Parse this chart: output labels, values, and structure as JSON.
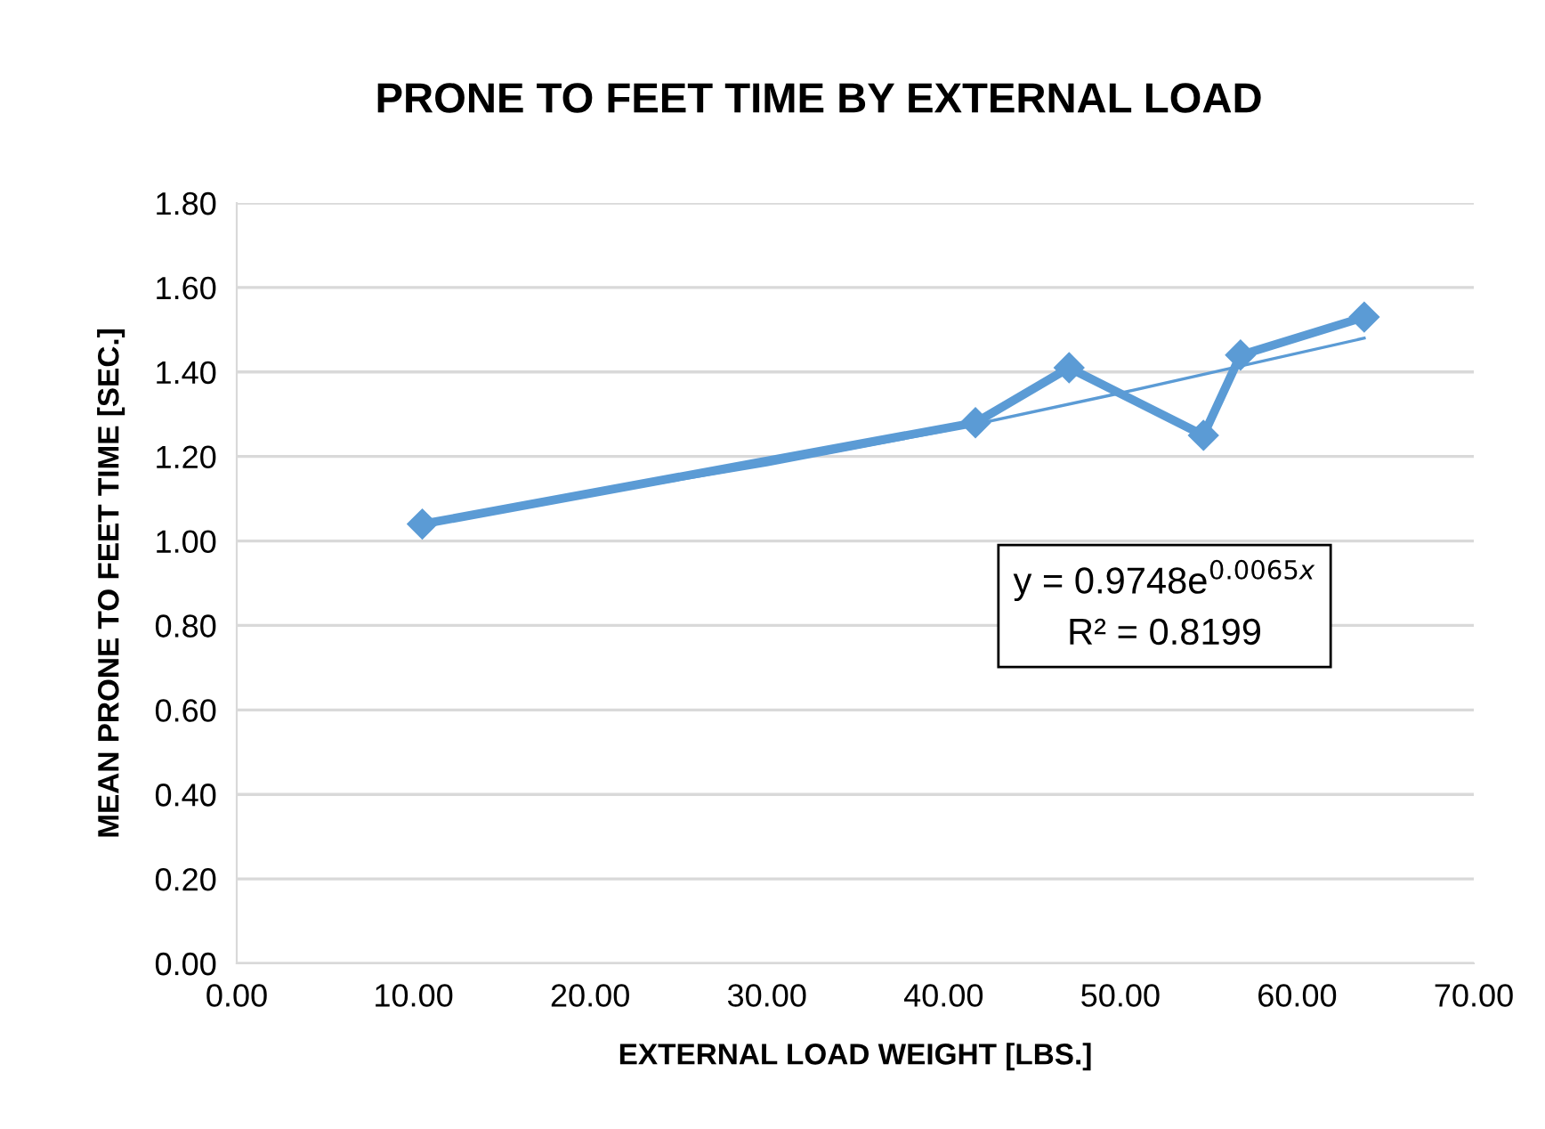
{
  "chart_data": {
    "type": "line",
    "title": "PRONE TO FEET TIME BY EXTERNAL LOAD",
    "xlabel": "EXTERNAL LOAD WEIGHT [LBS.]",
    "ylabel": "MEAN PRONE TO FEET TIME [SEC.]",
    "series": [
      {
        "color": "#5b9bd5",
        "marker": "diamond",
        "x": [
          10.5,
          41.8,
          47.1,
          54.7,
          56.8,
          63.8
        ],
        "values": [
          1.04,
          1.28,
          1.41,
          1.25,
          1.44,
          1.53
        ]
      },
      {
        "color": "#5b9bd5",
        "marker": "none",
        "x": [
          10.5,
          20,
          30,
          40,
          50,
          63.8
        ],
        "values": [
          1.04,
          1.11,
          1.18,
          1.26,
          1.35,
          1.48
        ]
      }
    ],
    "annotations": [
      "y = 0.9748e$^{0.0065x}$\nR² = 0.8199"
    ],
    "xlim": [
      0,
      70
    ],
    "xticks": [
      {
        "value": 0,
        "label": "0.00"
      },
      {
        "value": 10,
        "label": "10.00"
      },
      {
        "value": 20,
        "label": "20.00"
      },
      {
        "value": 30,
        "label": "30.00"
      },
      {
        "value": 40,
        "label": "40.00"
      },
      {
        "value": 50,
        "label": "50.00"
      },
      {
        "value": 60,
        "label": "60.00"
      },
      {
        "value": 70,
        "label": "70.00"
      }
    ],
    "ylim": [
      0,
      1.8
    ],
    "yticks": [
      {
        "value": 0,
        "label": "0.00"
      },
      {
        "value": 0.2,
        "label": "0.20"
      },
      {
        "value": 0.4,
        "label": "0.40"
      },
      {
        "value": 0.6,
        "label": "0.60"
      },
      {
        "value": 0.8,
        "label": "0.80"
      },
      {
        "value": 1.0,
        "label": "1.00"
      },
      {
        "value": 1.2,
        "label": "1.20"
      },
      {
        "value": 1.4,
        "label": "1.40"
      },
      {
        "value": 1.6,
        "label": "1.60"
      },
      {
        "value": 1.8,
        "label": "1.80"
      }
    ],
    "grid": "y",
    "legend": false
  }
}
